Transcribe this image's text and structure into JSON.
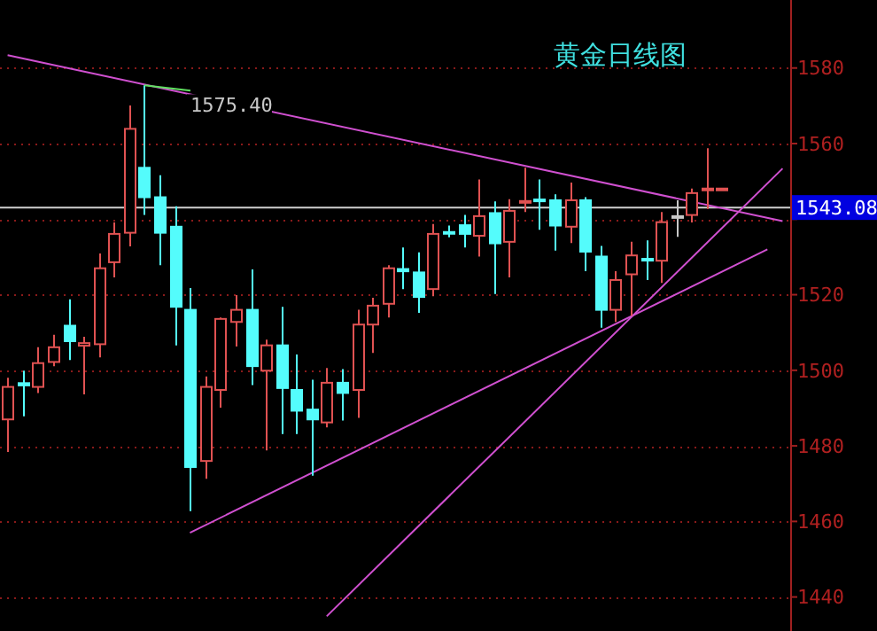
{
  "chart_data": {
    "type": "candlestick",
    "title": "黄金日线图",
    "categories": [
      null,
      null,
      null,
      null,
      null,
      null,
      null,
      null,
      null,
      null,
      null,
      null,
      null,
      null,
      null,
      null,
      null,
      null,
      null,
      null,
      null,
      null,
      null,
      null,
      null,
      null,
      null,
      null,
      null,
      null,
      null,
      null,
      null,
      null,
      null,
      null,
      null,
      null,
      null,
      null,
      null,
      null,
      null,
      null,
      null,
      null,
      null,
      null,
      null,
      null,
      null,
      null
    ],
    "ohlc": [
      [
        1487,
        1498,
        1478.4,
        1495.6
      ],
      [
        1496.6,
        1499.9,
        1487.8,
        1496
      ],
      [
        1495.6,
        1506.1,
        1494,
        1501.9
      ],
      [
        1502.2,
        1509.4,
        1501.1,
        1506.1
      ],
      [
        1511.8,
        1518.8,
        1502.7,
        1507.7
      ],
      [
        1506.5,
        1508.9,
        1493.6,
        1507.2
      ],
      [
        1506.9,
        1530.9,
        1503.4,
        1527
      ],
      [
        1528.6,
        1539.1,
        1524.6,
        1536.1
      ],
      [
        1536.4,
        1570.1,
        1532.8,
        1563.9
      ],
      [
        1553.6,
        1575.4,
        1541.1,
        1545.8
      ],
      [
        1545.8,
        1551.6,
        1527.8,
        1536.4
      ],
      [
        1538,
        1543.4,
        1506.6,
        1516.8
      ],
      [
        1516,
        1521.8,
        1462.7,
        1474.4
      ],
      [
        1476,
        1498.4,
        1471.3,
        1495.6
      ],
      [
        1494.8,
        1514,
        1490.1,
        1513.6
      ],
      [
        1512.8,
        1519.9,
        1506.3,
        1516
      ],
      [
        1516,
        1526.7,
        1496.1,
        1501.1
      ],
      [
        1499.9,
        1508.1,
        1478.8,
        1506.6
      ],
      [
        1506.6,
        1516.8,
        1483.1,
        1495.3
      ],
      [
        1494.8,
        1504.2,
        1483.1,
        1489.3
      ],
      [
        1489.6,
        1497.5,
        1472.1,
        1487
      ],
      [
        1486.2,
        1500.6,
        1484.9,
        1496.7
      ],
      [
        1496.7,
        1500.3,
        1486.7,
        1494
      ],
      [
        1494.8,
        1516,
        1487.4,
        1512.1
      ],
      [
        1512.1,
        1519.2,
        1504.6,
        1517.1
      ],
      [
        1517.6,
        1527.8,
        1514,
        1527
      ],
      [
        1526.8,
        1532.5,
        1521.5,
        1526.2
      ],
      [
        1525.9,
        1531.2,
        1515.2,
        1519.4
      ],
      [
        1521.5,
        1538.7,
        1519.6,
        1536.1
      ],
      [
        1536.6,
        1538.3,
        1535.2,
        1536.2
      ],
      [
        1538.4,
        1541.1,
        1532.5,
        1536.1
      ],
      [
        1535.6,
        1550.5,
        1530.1,
        1540.8
      ],
      [
        1541.6,
        1544.7,
        1520.2,
        1533.6
      ],
      [
        1534,
        1545.3,
        1524.6,
        1542.2
      ],
      [
        1544.4,
        1553.6,
        1541.9,
        1544.8
      ],
      [
        1545.2,
        1550.5,
        1537.2,
        1544.8
      ],
      [
        1545,
        1546.6,
        1531.7,
        1538.3
      ],
      [
        1538,
        1549.7,
        1533.7,
        1545
      ],
      [
        1545,
        1545.8,
        1526.2,
        1531.4
      ],
      [
        1530.1,
        1532.9,
        1511.3,
        1516
      ],
      [
        1516,
        1526.2,
        1512.8,
        1523.9
      ],
      [
        1525.4,
        1534,
        1514.4,
        1530.4
      ],
      [
        1529.5,
        1534.4,
        1523.9,
        1529.1
      ],
      [
        1529,
        1541.9,
        1523.1,
        1539.2
      ],
      [
        1540.8,
        1545,
        1535.3,
        1540.8
      ],
      [
        1541.1,
        1548.1,
        1539.1,
        1546.9
      ],
      [
        1547.9,
        1558.8,
        1542.7,
        1548.1
      ],
      [
        1547.9,
        1548.3,
        1547.8,
        1548.1
      ],
      null,
      null,
      null,
      null
    ],
    "colors": [
      "#e05252",
      "#54fcfc",
      "#e05252",
      "#e05252",
      "#54fcfc",
      "#e05252",
      "#e05252",
      "#e05252",
      "#e05252",
      "#54fcfc",
      "#54fcfc",
      "#54fcfc",
      "#54fcfc",
      "#e05252",
      "#e05252",
      "#e05252",
      "#54fcfc",
      "#e05252",
      "#54fcfc",
      "#54fcfc",
      "#54fcfc",
      "#e05252",
      "#54fcfc",
      "#e05252",
      "#e05252",
      "#e05252",
      "#54fcfc",
      "#54fcfc",
      "#e05252",
      "#54fcfc",
      "#54fcfc",
      "#e05252",
      "#54fcfc",
      "#e05252",
      "#e05252",
      "#54fcfc",
      "#54fcfc",
      "#e05252",
      "#54fcfc",
      "#54fcfc",
      "#e05252",
      "#e05252",
      "#54fcfc",
      "#e05252",
      "#c8c8c8",
      "#e05252",
      "#e05252",
      "#e05252",
      null,
      null,
      null,
      null
    ],
    "series": [
      {
        "type": "line",
        "color": "#d050d0",
        "values": [
          1583.4,
          null,
          null,
          null,
          null,
          null,
          null,
          null,
          null,
          null,
          null,
          null,
          null,
          null,
          null,
          null,
          null,
          null,
          null,
          null,
          null,
          null,
          null,
          null,
          null,
          null,
          null,
          null,
          null,
          null,
          null,
          null,
          null,
          null,
          null,
          null,
          null,
          null,
          null,
          null,
          null,
          null,
          null,
          null,
          null,
          null,
          null,
          null,
          null,
          null,
          null,
          1539.5
        ]
      },
      {
        "type": "line",
        "color": "#d050d0",
        "values": [
          null,
          null,
          null,
          null,
          null,
          null,
          null,
          null,
          null,
          null,
          null,
          null,
          1457,
          null,
          null,
          null,
          null,
          null,
          null,
          null,
          null,
          null,
          null,
          null,
          null,
          null,
          null,
          null,
          null,
          null,
          null,
          null,
          null,
          null,
          null,
          null,
          null,
          null,
          null,
          null,
          null,
          null,
          null,
          null,
          null,
          null,
          null,
          null,
          null,
          null,
          1532,
          null
        ]
      },
      {
        "type": "line",
        "color": "#d050d0",
        "values": [
          null,
          null,
          null,
          null,
          null,
          null,
          null,
          null,
          null,
          null,
          null,
          null,
          null,
          null,
          null,
          null,
          null,
          null,
          null,
          null,
          null,
          1434.9,
          null,
          null,
          null,
          null,
          null,
          null,
          null,
          null,
          null,
          null,
          null,
          null,
          null,
          null,
          null,
          null,
          null,
          null,
          null,
          null,
          null,
          null,
          null,
          null,
          null,
          null,
          null,
          null,
          null,
          1553.4
        ]
      }
    ],
    "ylim": [
      1431,
      1598
    ],
    "yticks": [
      1440,
      1460,
      1480,
      1500,
      1520,
      {
        "value": 1540,
        "label": null
      },
      1560,
      1580
    ],
    "grid": "y",
    "ref_lines": [
      {
        "axis": "y",
        "value": 1543.08,
        "label": "1543.08",
        "color": "#d0d0d0"
      }
    ],
    "annotations": [
      "1575.40"
    ]
  }
}
